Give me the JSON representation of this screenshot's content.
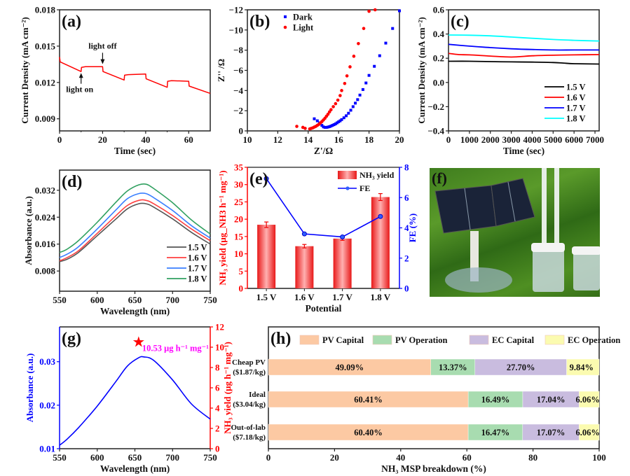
{
  "figure_title": "",
  "chart_data": [
    {
      "id": "a",
      "panel_label": "(a)",
      "type": "line",
      "title": "",
      "xlabel": "Time (sec)",
      "ylabel": "Current Density (mA cm⁻²)",
      "xlim": [
        0,
        70
      ],
      "ylim": [
        0.008,
        0.018
      ],
      "xticks": [
        0,
        20,
        40,
        60
      ],
      "yticks": [
        0.009,
        0.012,
        0.015,
        0.018
      ],
      "ytick_labels": [
        "0.009",
        "0.012",
        "0.015",
        "0.018"
      ],
      "series": [
        {
          "name": "current",
          "color": "#ff0000",
          "x": [
            0,
            0.3,
            10,
            10.2,
            12,
            20,
            20.2,
            30,
            30.2,
            32,
            40,
            40.2,
            50,
            50.2,
            52,
            60,
            60.2,
            70
          ],
          "y": [
            0.0141,
            0.0137,
            0.0129,
            0.01325,
            0.0133,
            0.0133,
            0.0129,
            0.0122,
            0.0126,
            0.01265,
            0.0127,
            0.0123,
            0.0116,
            0.0121,
            0.01215,
            0.0121,
            0.0117,
            0.0111
          ]
        }
      ],
      "annotations": [
        {
          "text": "light on",
          "x": 10,
          "y": 0.0112,
          "arrow_to": [
            10,
            0.0129
          ]
        },
        {
          "text": "light off",
          "x": 20,
          "y": 0.0148,
          "arrow_to": [
            20,
            0.0134
          ]
        }
      ]
    },
    {
      "id": "b",
      "panel_label": "(b)",
      "type": "scatter",
      "xlabel": "Z'/Ω",
      "ylabel": "Z'' /Ω",
      "xlim": [
        10,
        20
      ],
      "ylim": [
        0,
        -12
      ],
      "xticks": [
        10,
        12,
        14,
        16,
        18,
        20
      ],
      "yticks": [
        0,
        -2,
        -4,
        -6,
        -8,
        -10,
        -12
      ],
      "legend": "top-left",
      "series": [
        {
          "name": "Dark",
          "color": "#0000ff",
          "marker": "square",
          "x": [
            14.4,
            14.6,
            14.75,
            14.9,
            15.0,
            15.1,
            15.2,
            15.3,
            15.4,
            15.5,
            15.6,
            15.7,
            15.8,
            15.9,
            16.0,
            16.1,
            16.2,
            16.35,
            16.5,
            16.65,
            16.8,
            16.95,
            17.1,
            17.25,
            17.4,
            17.6,
            17.8,
            18.0,
            18.35,
            18.7,
            19.1,
            19.55,
            20.0
          ],
          "y": [
            -1.2,
            -1.0,
            -0.8,
            -0.55,
            -0.4,
            -0.35,
            -0.35,
            -0.38,
            -0.42,
            -0.48,
            -0.55,
            -0.62,
            -0.7,
            -0.8,
            -0.9,
            -1.0,
            -1.12,
            -1.3,
            -1.5,
            -1.75,
            -2.05,
            -2.4,
            -2.75,
            -3.1,
            -3.55,
            -4.1,
            -4.75,
            -5.5,
            -6.4,
            -7.45,
            -8.7,
            -10.15,
            -11.9
          ]
        },
        {
          "name": "Light",
          "color": "#ff0000",
          "marker": "circle",
          "x": [
            13.25,
            13.65,
            13.8,
            14.1,
            14.2,
            14.3,
            14.4,
            14.5,
            14.6,
            14.7,
            14.8,
            14.9,
            15.0,
            15.1,
            15.2,
            15.3,
            15.4,
            15.5,
            15.65,
            15.8,
            15.95,
            16.1,
            16.2,
            16.4,
            16.55,
            16.75,
            17.0,
            17.3,
            17.65,
            18.0,
            18.4
          ],
          "y": [
            -0.45,
            -0.35,
            -0.25,
            -0.2,
            -0.25,
            -0.3,
            -0.38,
            -0.45,
            -0.55,
            -0.65,
            -0.78,
            -0.92,
            -1.08,
            -1.25,
            -1.45,
            -1.65,
            -1.88,
            -2.1,
            -2.4,
            -2.7,
            -3.05,
            -3.5,
            -4.0,
            -4.7,
            -5.45,
            -6.35,
            -7.4,
            -8.65,
            -10.15,
            -11.85,
            -12.0
          ]
        }
      ]
    },
    {
      "id": "c",
      "panel_label": "(c)",
      "type": "line",
      "xlabel": "Time (sec)",
      "ylabel": "Current Density (mA cm⁻²)",
      "xlim": [
        0,
        7200
      ],
      "ylim": [
        -0.4,
        0.6
      ],
      "xticks": [
        0,
        1000,
        2000,
        3000,
        4000,
        5000,
        6000,
        7000
      ],
      "yticks": [
        -0.4,
        -0.2,
        0.0,
        0.2,
        0.4,
        0.6
      ],
      "ytick_labels": [
        "−0.4",
        "−0.2",
        "0.0",
        "0.2",
        "0.4",
        "0.6"
      ],
      "legend": "bottom-right",
      "series": [
        {
          "name": "1.5 V",
          "color": "#000000",
          "x": [
            0,
            1000,
            2000,
            3000,
            4000,
            5000,
            5500,
            6000,
            7200
          ],
          "y": [
            0.175,
            0.175,
            0.172,
            0.17,
            0.168,
            0.165,
            0.16,
            0.155,
            0.152
          ]
        },
        {
          "name": "1.6 V",
          "color": "#ff0000",
          "x": [
            0,
            500,
            1000,
            2000,
            3000,
            4000,
            5000,
            6000,
            7200
          ],
          "y": [
            0.24,
            0.23,
            0.228,
            0.218,
            0.21,
            0.22,
            0.225,
            0.228,
            0.23
          ]
        },
        {
          "name": "1.7 V",
          "color": "#0000ff",
          "x": [
            0,
            1000,
            2000,
            3000,
            4000,
            5000,
            6000,
            7200
          ],
          "y": [
            0.315,
            0.3,
            0.288,
            0.278,
            0.272,
            0.268,
            0.268,
            0.268
          ]
        },
        {
          "name": "1.8 V",
          "color": "#00ffff",
          "x": [
            0,
            1000,
            2000,
            3000,
            4000,
            5000,
            6000,
            7200
          ],
          "y": [
            0.392,
            0.39,
            0.385,
            0.375,
            0.365,
            0.355,
            0.348,
            0.342
          ]
        }
      ]
    },
    {
      "id": "d",
      "panel_label": "(d)",
      "type": "line",
      "xlabel": "Wavelength (nm)",
      "ylabel": "Absorbance (a.u.)",
      "xlim": [
        550,
        750
      ],
      "ylim": [
        0.002,
        0.038
      ],
      "xticks": [
        550,
        600,
        650,
        700,
        750
      ],
      "yticks": [
        0.008,
        0.016,
        0.024,
        0.032
      ],
      "ytick_labels": [
        "0.008",
        "0.016",
        "0.024",
        "0.032"
      ],
      "legend": "bottom-right",
      "series": [
        {
          "name": "1.5 V",
          "color": "#555555",
          "x": [
            550,
            560,
            575,
            600,
            625,
            640,
            655,
            665,
            675,
            700,
            725,
            750
          ],
          "y": [
            0.0108,
            0.0115,
            0.0135,
            0.0185,
            0.0235,
            0.0265,
            0.028,
            0.028,
            0.027,
            0.0235,
            0.0195,
            0.016
          ]
        },
        {
          "name": "1.6 V",
          "color": "#ff4040",
          "x": [
            550,
            560,
            575,
            600,
            625,
            640,
            655,
            665,
            675,
            700,
            725,
            750
          ],
          "y": [
            0.011,
            0.012,
            0.014,
            0.0192,
            0.0245,
            0.0275,
            0.029,
            0.029,
            0.028,
            0.0245,
            0.0205,
            0.017
          ]
        },
        {
          "name": "1.7 V",
          "color": "#3a7fff",
          "x": [
            550,
            560,
            575,
            600,
            625,
            640,
            655,
            665,
            675,
            700,
            725,
            750
          ],
          "y": [
            0.012,
            0.013,
            0.0152,
            0.0205,
            0.0262,
            0.0295,
            0.031,
            0.031,
            0.0298,
            0.026,
            0.0215,
            0.0178
          ]
        },
        {
          "name": "1.8 V",
          "color": "#30a060",
          "x": [
            550,
            560,
            575,
            600,
            625,
            640,
            655,
            665,
            675,
            700,
            725,
            750
          ],
          "y": [
            0.0135,
            0.0145,
            0.017,
            0.0225,
            0.0285,
            0.0318,
            0.0336,
            0.0338,
            0.0325,
            0.0283,
            0.0232,
            0.019
          ]
        }
      ]
    },
    {
      "id": "e",
      "panel_label": "(e)",
      "type": "bar",
      "xlabel": "Potential",
      "ylabel": "NH₃ yield (μg_NH3 h⁻¹ mg⁻¹)",
      "ylabel2": "FE (%)",
      "categories": [
        "1.5 V",
        "1.6 V",
        "1.7 V",
        "1.8 V"
      ],
      "ylim": [
        0,
        35
      ],
      "y2lim": [
        0,
        8
      ],
      "yticks": [
        0,
        5,
        10,
        15,
        20,
        25,
        30,
        35
      ],
      "y2ticks": [
        0,
        2,
        4,
        6,
        8
      ],
      "legend": "top-right",
      "series": [
        {
          "name": "NH₃ yield",
          "color": "#ff3030",
          "axis": "left",
          "values": [
            18.4,
            12.2,
            14.4,
            26.4
          ],
          "errors": [
            0.8,
            0.5,
            0.5,
            1.0
          ]
        },
        {
          "name": "FE",
          "color": "#0000ff",
          "axis": "right",
          "type": "line",
          "values": [
            7.25,
            3.6,
            3.4,
            4.75
          ]
        }
      ]
    },
    {
      "id": "g",
      "panel_label": "(g)",
      "type": "line",
      "xlabel": "Wavelength (nm)",
      "ylabel": "Absorbance (a.u.)",
      "ylabel2": "NH₃ yield (μg h⁻¹ mg⁻¹)",
      "xlim": [
        550,
        750
      ],
      "ylim": [
        0.01,
        0.038
      ],
      "y2lim": [
        0,
        12
      ],
      "xticks": [
        550,
        600,
        650,
        700,
        750
      ],
      "yticks": [
        0.01,
        0.02,
        0.03
      ],
      "ytick_labels": [
        "0.01",
        "0.02",
        "0.03"
      ],
      "y2ticks": [
        0,
        2,
        4,
        6,
        8,
        10,
        12
      ],
      "series": [
        {
          "name": "Absorbance",
          "color": "#0000ff",
          "x": [
            550,
            560,
            575,
            600,
            625,
            640,
            655,
            662,
            675,
            700,
            725,
            750
          ],
          "y": [
            0.0108,
            0.0122,
            0.0148,
            0.0198,
            0.0255,
            0.029,
            0.0309,
            0.0311,
            0.0303,
            0.0258,
            0.0203,
            0.0168
          ]
        },
        {
          "name": "NH₃ yield",
          "color": "#ff0000",
          "axis": "right",
          "marker": "star",
          "x": [
            655
          ],
          "y": [
            10.53
          ]
        }
      ],
      "annotations": [
        {
          "text": "10.53 μg h⁻¹ mg⁻¹",
          "color": "#ff00ff"
        }
      ]
    },
    {
      "id": "h",
      "panel_label": "(h)",
      "type": "bar",
      "orientation": "horizontal-stacked",
      "xlabel": "NH₃ MSP breakdown (%)",
      "xlim": [
        0,
        100
      ],
      "xticks": [
        0,
        20,
        40,
        60,
        80,
        100
      ],
      "legend": "top",
      "categories": [
        "Cheap PV\n($1.87/kg)",
        "Ideal\n($3.04/kg)",
        "Out-of-lab\n($7.18/kg)"
      ],
      "series": [
        {
          "name": "PV Capital",
          "color": "#fcc9a3",
          "values": [
            49.09,
            60.41,
            60.4
          ],
          "labels": [
            "49.09%",
            "60.41%",
            "60.40%"
          ]
        },
        {
          "name": "PV Operation",
          "color": "#a8dcb0",
          "values": [
            13.37,
            16.49,
            16.47
          ],
          "labels": [
            "13.37%",
            "16.49%",
            "16.47%"
          ]
        },
        {
          "name": "EC Capital",
          "color": "#c9bcdf",
          "values": [
            27.7,
            17.04,
            17.07
          ],
          "labels": [
            "27.70%",
            "17.04%",
            "17.07%"
          ]
        },
        {
          "name": "EC Operation",
          "color": "#fbfbb0",
          "values": [
            9.84,
            6.06,
            6.06
          ],
          "labels": [
            "9.84%",
            "6.06%",
            "6.06%"
          ]
        }
      ]
    }
  ],
  "photo": {
    "panel_label": "(f)",
    "description": "Solar panel powering electrolysis cells on grass"
  }
}
